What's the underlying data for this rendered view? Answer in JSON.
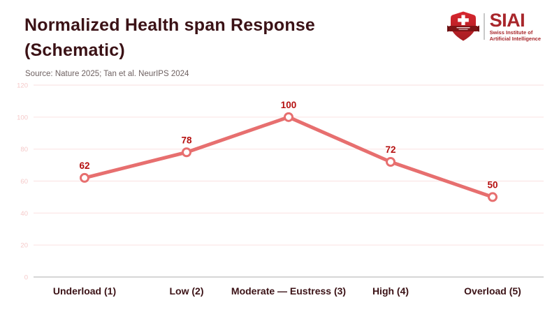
{
  "header": {
    "title_line1": "Normalized Health span Response",
    "title_line2": "(Schematic)",
    "source": "Source: Nature 2025; Tan et al. NeurIPS 2024",
    "logo": {
      "acronym": "SIAI",
      "subtitle_line1": "Swiss Institute of",
      "subtitle_line2": "Artificial Intelligence",
      "shield_icon": "swiss-shield-cross-icon"
    }
  },
  "colors": {
    "title": "#3b1216",
    "source_text": "#6e6161",
    "line": "#e76f6f",
    "marker_fill": "#ffffff",
    "data_label": "#b51010",
    "category_label": "#3b1216",
    "grid": "#fbe5e5",
    "axis_line": "#bdbdbd",
    "y_tick": "#f5c9c9",
    "logo_red": "#a8262b",
    "shield_red": "#cc2229",
    "shield_dark_red": "#9e1b20",
    "ribbon_red": "#7d1315"
  },
  "chart_data": {
    "type": "line",
    "title": "Normalized Health span Response (Schematic)",
    "categories": [
      "Underload (1)",
      "Low (2)",
      "Moderate — Eustress (3)",
      "High (4)",
      "Overload (5)"
    ],
    "series": [
      {
        "name": "Normalized health span response",
        "values": [
          62,
          78,
          100,
          72,
          50
        ]
      }
    ],
    "data_labels": [
      "62",
      "78",
      "100",
      "72",
      "50"
    ],
    "xlabel": "",
    "ylabel": "",
    "ylim": [
      0,
      120
    ],
    "yticks": [
      0,
      20,
      40,
      60,
      80,
      100,
      120
    ],
    "grid": true,
    "legend": false,
    "marker": "open-circle"
  }
}
